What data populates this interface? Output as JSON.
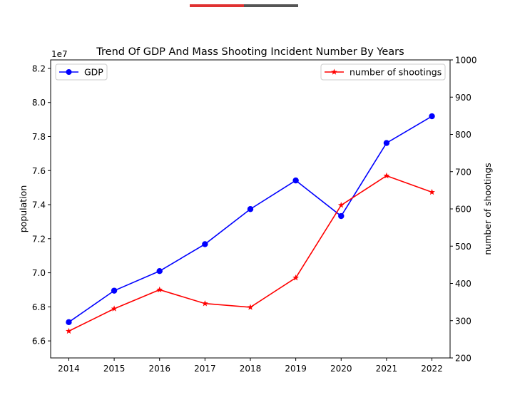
{
  "chart_data": {
    "type": "line",
    "title": "Trend Of GDP And Mass Shooting Incident Number By Years",
    "x": [
      2014,
      2015,
      2016,
      2017,
      2018,
      2019,
      2020,
      2021,
      2022
    ],
    "x_tick_labels": [
      "2014",
      "2015",
      "2016",
      "2017",
      "2018",
      "2019",
      "2020",
      "2021",
      "2022"
    ],
    "left_axis": {
      "label": "population",
      "offset_label": "1e7",
      "scale": 10000000,
      "ylim": [
        6.5,
        8.25
      ],
      "ticks": [
        6.6,
        6.8,
        7.0,
        7.2,
        7.4,
        7.6,
        7.8,
        8.0,
        8.2
      ],
      "tick_labels": [
        "6.6",
        "6.8",
        "7.0",
        "7.2",
        "7.4",
        "7.6",
        "7.8",
        "8.0",
        "8.2"
      ]
    },
    "right_axis": {
      "label": "number of shootings",
      "ylim": [
        200,
        1000
      ],
      "ticks": [
        200,
        300,
        400,
        500,
        600,
        700,
        800,
        900,
        1000
      ],
      "tick_labels": [
        "200",
        "300",
        "400",
        "500",
        "600",
        "700",
        "800",
        "900",
        "1000"
      ]
    },
    "series": [
      {
        "name": "GDP",
        "axis": "left",
        "color": "#0000ff",
        "marker": "circle",
        "values": [
          6.71,
          6.895,
          7.01,
          7.168,
          7.374,
          7.542,
          7.333,
          7.762,
          7.919
        ]
      },
      {
        "name": "number of shootings",
        "axis": "right",
        "color": "#ff0000",
        "marker": "star",
        "values": [
          272,
          332,
          383,
          346,
          336,
          415,
          610,
          689,
          645
        ]
      }
    ],
    "legends": [
      {
        "series": "GDP",
        "placement": "upper-left"
      },
      {
        "series": "number of shootings",
        "placement": "upper-right"
      }
    ],
    "grid": false
  },
  "colors": {
    "top_bar_primary": "#e03131",
    "top_bar_secondary": "#555555"
  }
}
